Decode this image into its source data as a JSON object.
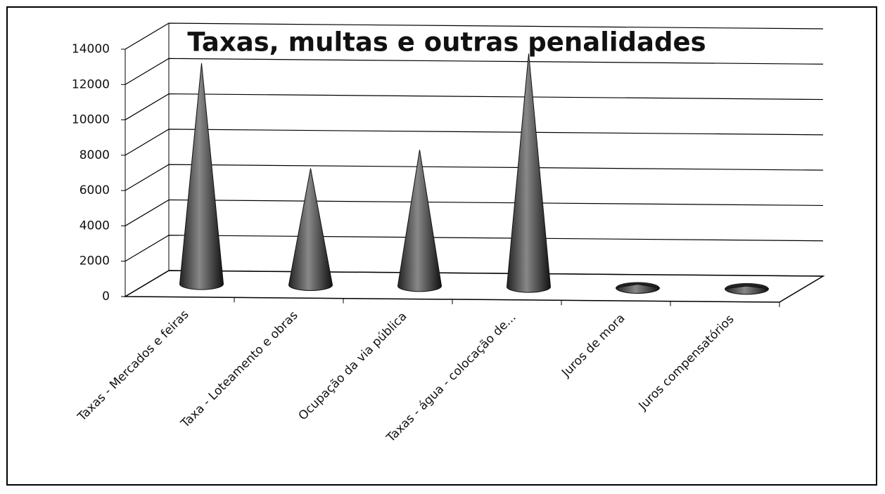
{
  "chart_data": {
    "type": "cone",
    "title": "Taxas, multas e outras penalidades",
    "categories": [
      "Taxas - Mercados e feiras",
      "Taxa - Loteamento e obras",
      "Ocupação da via pública",
      "Taxas - água - colocação de...",
      "Juros de mora",
      "Juros compensatórios"
    ],
    "values": [
      12500,
      6600,
      7700,
      13200,
      200,
      150
    ],
    "color": "#555555",
    "ylim": [
      0,
      14000
    ],
    "yticks": [
      0,
      2000,
      4000,
      6000,
      8000,
      10000,
      12000,
      14000
    ],
    "grid": true
  }
}
